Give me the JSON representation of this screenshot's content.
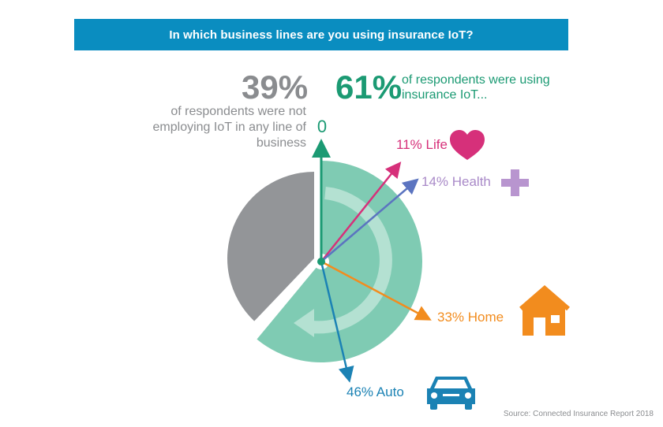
{
  "header": {
    "title": "In which business lines are you using insurance IoT?"
  },
  "summary": {
    "not_using_pct": "39%",
    "not_using_text": "of respondents were not employing IoT in any line of business",
    "using_pct": "61%",
    "using_text": "of respondents were using insurance IoT...",
    "zero_label": "0"
  },
  "chart_data": {
    "type": "pie",
    "title": "In which business lines are you using insurance IoT?",
    "slices": [
      {
        "label": "using insurance IoT",
        "value": 61,
        "color": "#7fcbb3"
      },
      {
        "label": "not employing IoT in any line of business",
        "value": 39,
        "color": "#939598"
      }
    ],
    "business_lines": [
      {
        "name": "Life",
        "value": 11,
        "label": "11% Life",
        "color": "#d6307a",
        "icon": "heart-icon"
      },
      {
        "name": "Health",
        "value": 14,
        "label": "14% Health",
        "color": "#5b74c0",
        "icon": "cross-icon"
      },
      {
        "name": "Home",
        "value": 33,
        "label": "33% Home",
        "color": "#f28c1e",
        "icon": "house-icon"
      },
      {
        "name": "Auto",
        "value": 46,
        "label": "46% Auto",
        "color": "#1b82b4",
        "icon": "car-icon"
      }
    ],
    "accent_color": "#1b9a73"
  },
  "footer": {
    "source": "Source: Connected Insurance Report 2018"
  }
}
